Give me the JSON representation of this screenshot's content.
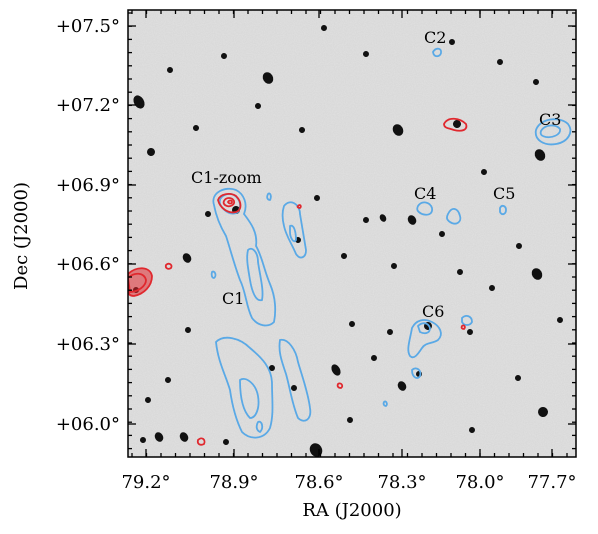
{
  "figure": {
    "xlabel": "RA (J2000)",
    "ylabel": "Dec (J2000)",
    "ra_ticks": [
      "79.2°",
      "78.9°",
      "78.6°",
      "78.3°",
      "78.0°",
      "77.7°"
    ],
    "dec_ticks": [
      "+07.5°",
      "+07.2°",
      "+06.9°",
      "+06.6°",
      "+06.3°",
      "+06.0°"
    ],
    "contour_colors": {
      "blue": "#5aa9e6",
      "red": "#e0282e"
    },
    "sources": [
      {
        "label": "C2"
      },
      {
        "label": "C3"
      },
      {
        "label": "C1-zoom"
      },
      {
        "label": "C4"
      },
      {
        "label": "C5"
      },
      {
        "label": "C1"
      },
      {
        "label": "C6"
      }
    ]
  }
}
